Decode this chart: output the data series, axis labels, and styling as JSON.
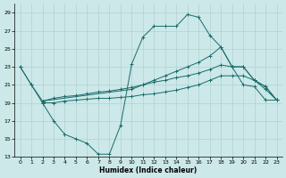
{
  "xlabel": "Humidex (Indice chaleur)",
  "bg_color": "#cce8e8",
  "grid_color": "#aacccc",
  "line_color": "#1a6b6b",
  "xlim": [
    -0.5,
    23.5
  ],
  "ylim": [
    13,
    30
  ],
  "yticks": [
    13,
    15,
    17,
    19,
    21,
    23,
    25,
    27,
    29
  ],
  "xticks": [
    0,
    1,
    2,
    3,
    4,
    5,
    6,
    7,
    8,
    9,
    10,
    11,
    12,
    13,
    14,
    15,
    16,
    17,
    18,
    19,
    20,
    21,
    22,
    23
  ],
  "line1_x": [
    0,
    1,
    2,
    3,
    4,
    5,
    6,
    7,
    8,
    9,
    10,
    11,
    12,
    13,
    14,
    15,
    16,
    17,
    18,
    19,
    20,
    21,
    22,
    23
  ],
  "line1_y": [
    23,
    21,
    19,
    17,
    15.5,
    15,
    14.5,
    13.3,
    13.3,
    16.5,
    23.3,
    26.3,
    27.5,
    27.5,
    27.5,
    28.8,
    28.5,
    26.5,
    25.2,
    23.0,
    21.0,
    20.8,
    19.3,
    19.3
  ],
  "line2_x": [
    0,
    1,
    2,
    10,
    11,
    12,
    13,
    14,
    15,
    16,
    17,
    18,
    19,
    20,
    21,
    22,
    23
  ],
  "line2_y": [
    23,
    21,
    19.2,
    20.5,
    21,
    21.5,
    22,
    22.5,
    23,
    23.5,
    24.2,
    25.2,
    23.0,
    23.0,
    21.5,
    20.8,
    19.3
  ],
  "line3_x": [
    2,
    3,
    4,
    5,
    6,
    7,
    8,
    9,
    10,
    11,
    12,
    13,
    14,
    15,
    16,
    17,
    18,
    19,
    20,
    21,
    22,
    23
  ],
  "line3_y": [
    19.2,
    19.5,
    19.7,
    19.8,
    20,
    20.2,
    20.3,
    20.5,
    20.7,
    21.0,
    21.3,
    21.5,
    21.8,
    22.0,
    22.3,
    22.7,
    23.2,
    23.0,
    23.0,
    21.5,
    20.8,
    19.3
  ],
  "line4_x": [
    2,
    3,
    4,
    5,
    6,
    7,
    8,
    9,
    10,
    11,
    12,
    13,
    14,
    15,
    16,
    17,
    18,
    19,
    20,
    21,
    22,
    23
  ],
  "line4_y": [
    19.0,
    19.0,
    19.2,
    19.3,
    19.4,
    19.5,
    19.5,
    19.6,
    19.7,
    19.9,
    20.0,
    20.2,
    20.4,
    20.7,
    21.0,
    21.5,
    22.0,
    22.0,
    22.0,
    21.5,
    20.5,
    19.3
  ]
}
